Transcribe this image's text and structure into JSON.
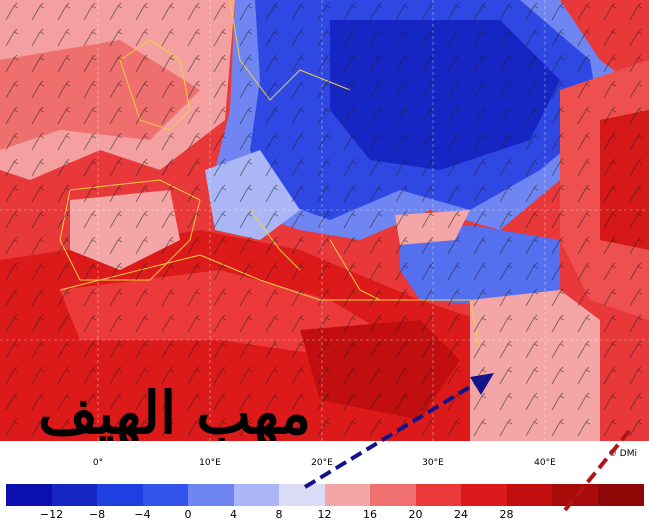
{
  "map": {
    "title_overlay": "مهب الهيف",
    "credit": "© DMi",
    "longitude_labels": [
      "0°",
      "10°E",
      "20°E",
      "30°E",
      "40°E"
    ]
  },
  "legend": {
    "ticks": [
      "−12",
      "−8",
      "−4",
      "0",
      "4",
      "8",
      "12",
      "16",
      "20",
      "24",
      "28"
    ],
    "colors": [
      "#0b0fae",
      "#1626c4",
      "#1f3fe0",
      "#3354ec",
      "#6f86f2",
      "#aab6f5",
      "#dcdcf8",
      "#f4a6a6",
      "#f07070",
      "#ec3a3a",
      "#dd1a1a",
      "#c20e0e",
      "#a80a0a",
      "#8e0606"
    ]
  },
  "annotation": {
    "arrow_color": "#13138a",
    "secondary_arrow_color": "#b01515"
  }
}
